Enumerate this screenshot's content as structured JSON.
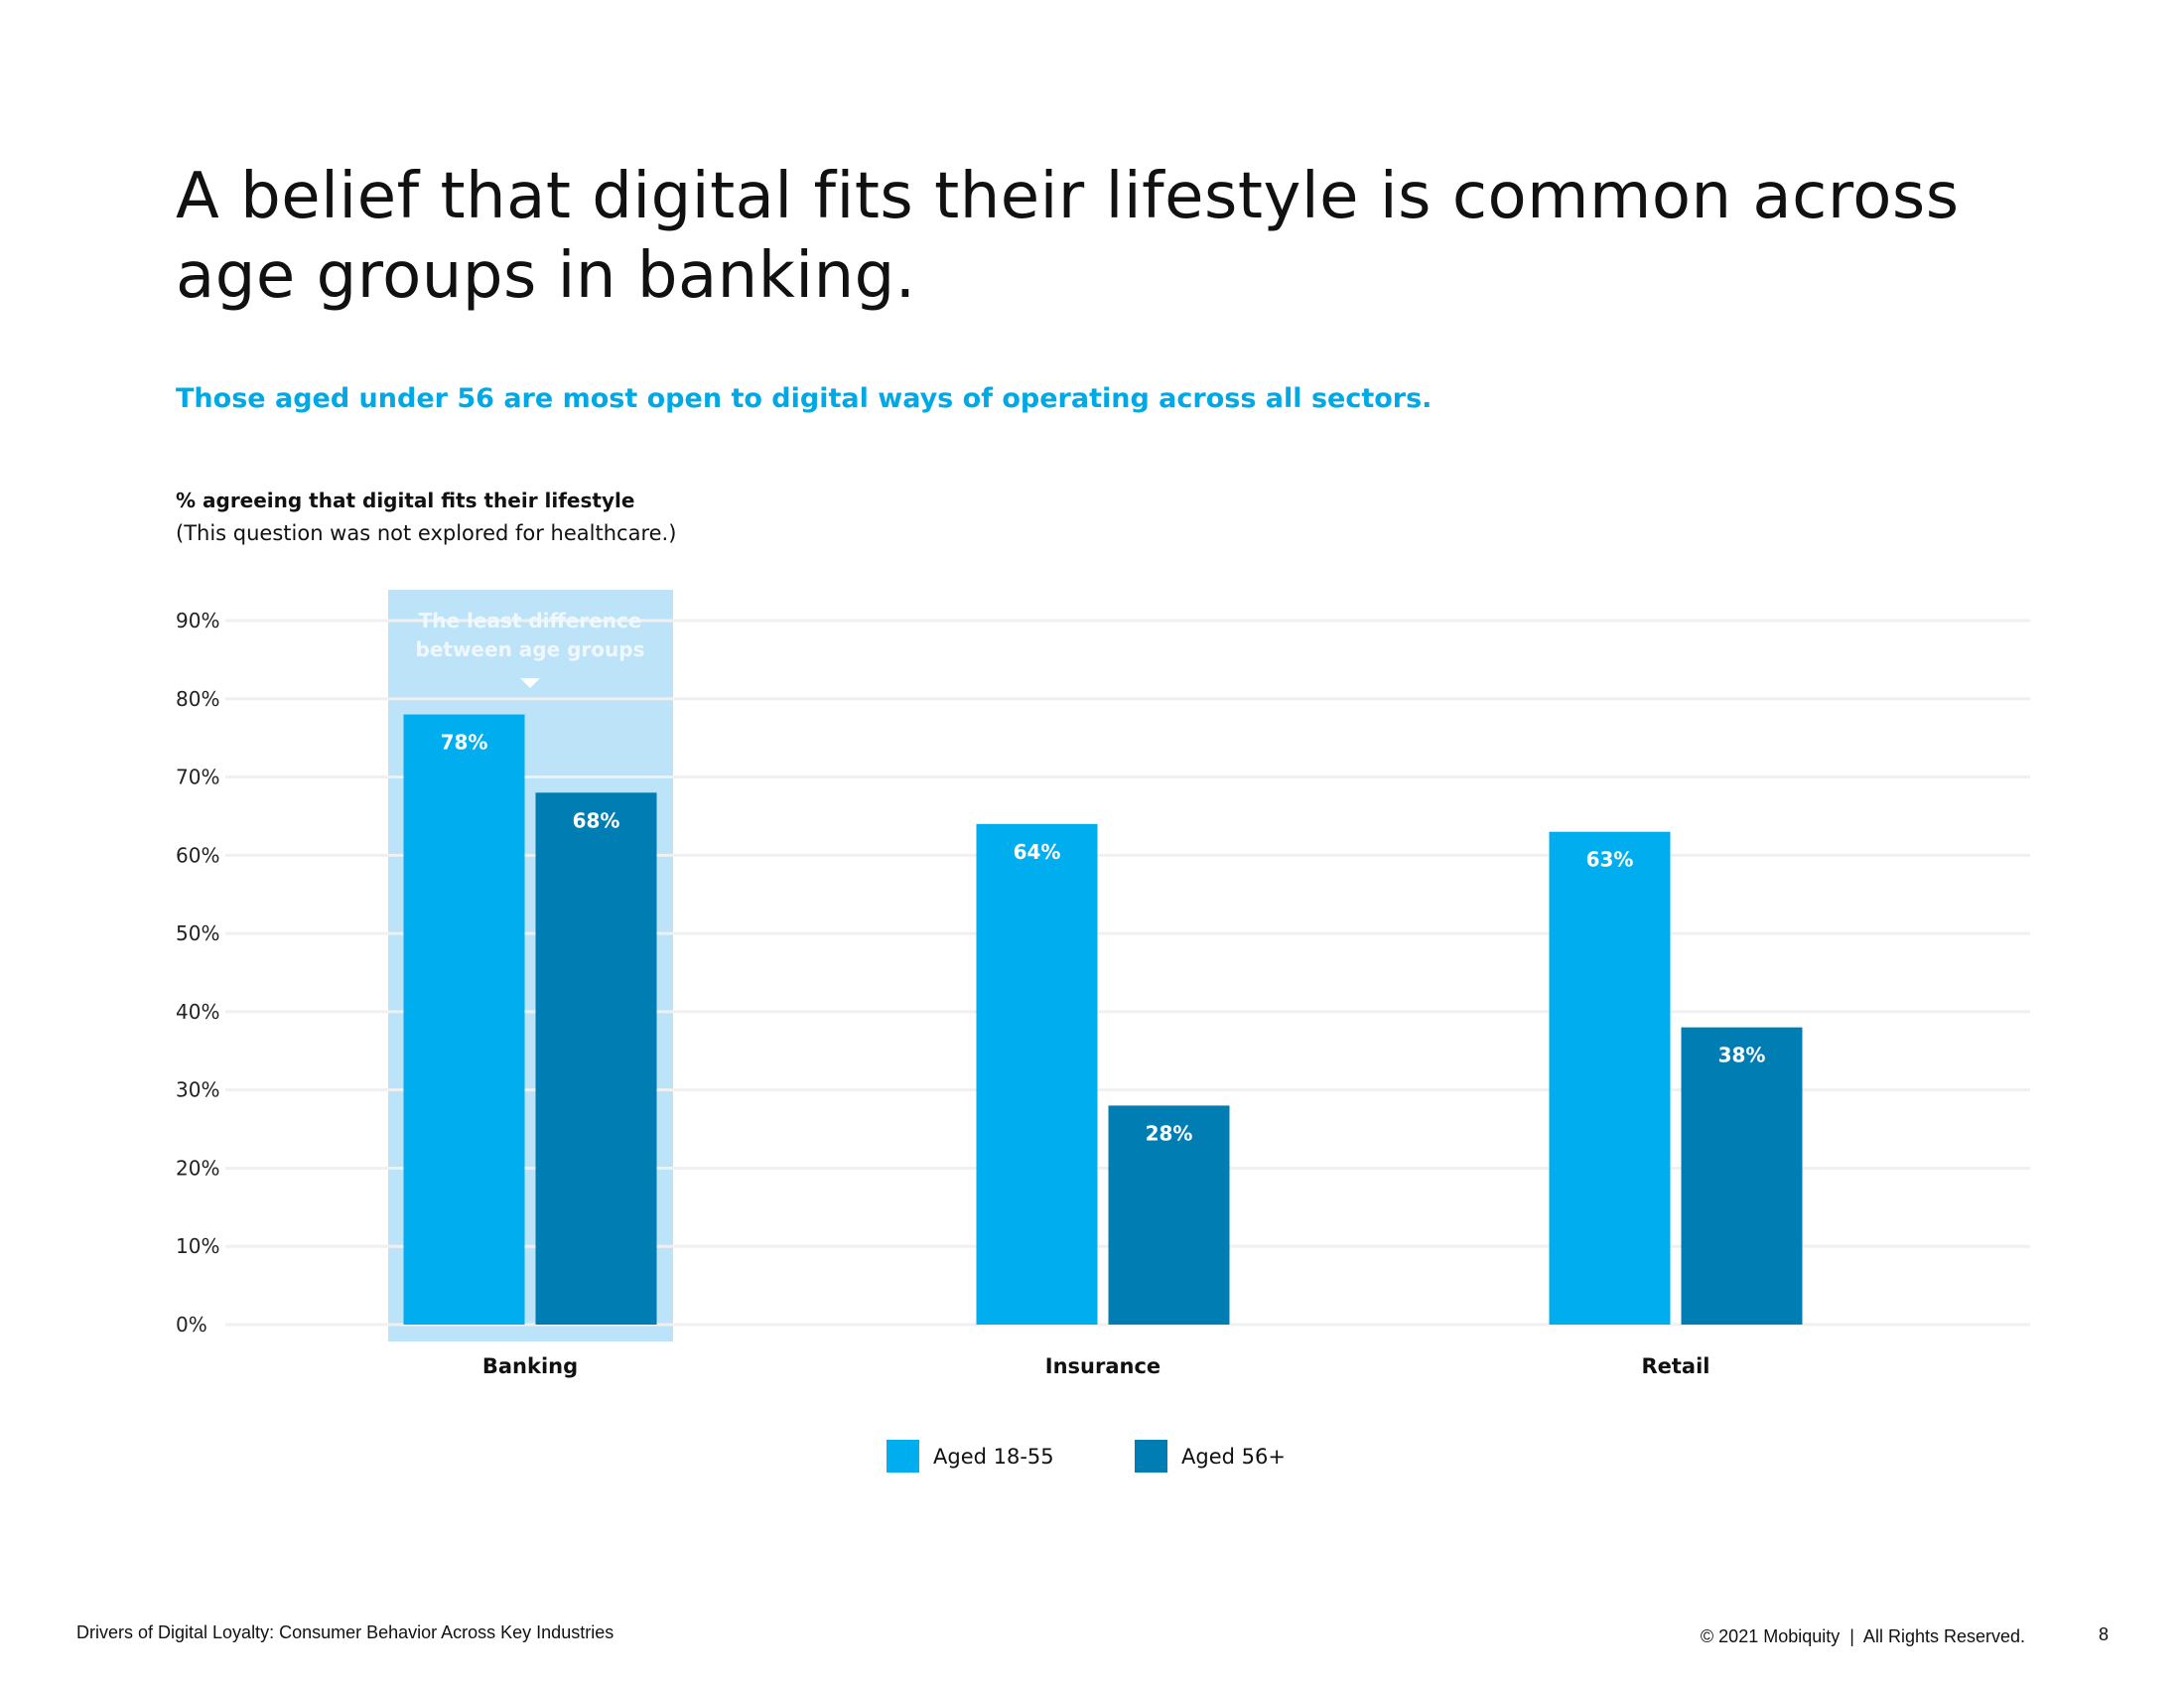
{
  "title": "A belief that digital fits their lifestyle is common across age groups in banking.",
  "subtitle": "Those aged under 56 are most open to digital ways of operating across all sectors.",
  "chart_label": "% agreeing that digital fits their lifestyle",
  "chart_note": "(This question was not explored for healthcare.)",
  "chart_data": {
    "type": "bar",
    "categories": [
      "Banking",
      "Insurance",
      "Retail"
    ],
    "series": [
      {
        "name": "Aged 18-55",
        "values": [
          78,
          64,
          63
        ],
        "color": "#00aeef"
      },
      {
        "name": "Aged 56+",
        "values": [
          68,
          28,
          38
        ],
        "color": "#007eb4"
      }
    ],
    "ylim": [
      0,
      90
    ],
    "yticks": [
      "0%",
      "10%",
      "20%",
      "30%",
      "40%",
      "50%",
      "60%",
      "70%",
      "80%",
      "90%"
    ],
    "ytick_values": [
      0,
      10,
      20,
      30,
      40,
      50,
      60,
      70,
      80,
      90
    ],
    "grid": true,
    "legend_position": "bottom",
    "data_label_suffix": "%",
    "annotation": {
      "lines": [
        "The least difference",
        "between age groups"
      ],
      "category": "Banking",
      "highlight_color": "#bde3f8"
    }
  },
  "footer": {
    "left": "Drivers of Digital Loyalty: Consumer Behavior Across Key Industries",
    "right": "© 2021 Mobiquity  |  All Rights Reserved.",
    "page": "8"
  }
}
